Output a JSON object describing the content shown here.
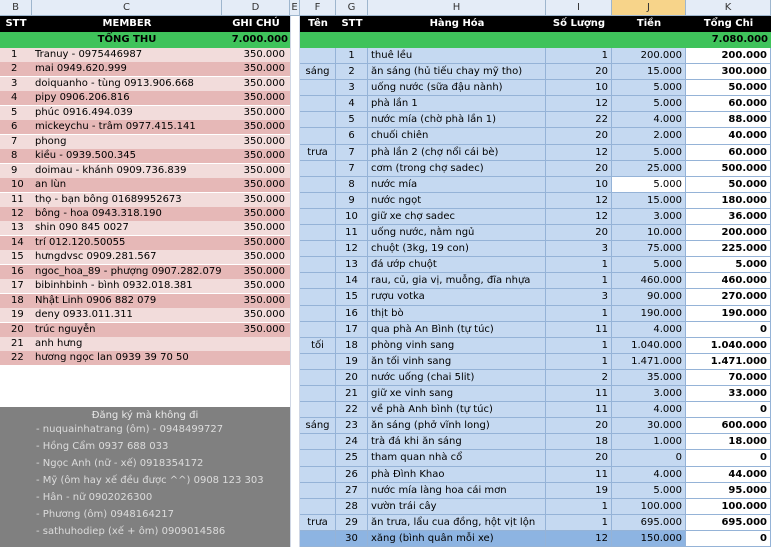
{
  "columns": [
    "B",
    "C",
    "D",
    "E",
    "F",
    "G",
    "H",
    "I",
    "J",
    "K"
  ],
  "left": {
    "headers": {
      "stt": "STT",
      "member": "MEMBER",
      "note": "GHI CHÚ"
    },
    "total_label": "TỔNG THU",
    "total_value": "7.000.000",
    "members": [
      {
        "stt": "1",
        "name": "Tranuy - 0975446987",
        "amount": "350.000"
      },
      {
        "stt": "2",
        "name": "mai 0949.620.999",
        "amount": "350.000"
      },
      {
        "stt": "3",
        "name": "doiquanho - tùng 0913.906.668",
        "amount": "350.000"
      },
      {
        "stt": "4",
        "name": "pipy 0906.206.816",
        "amount": "350.000"
      },
      {
        "stt": "5",
        "name": "phúc 0916.494.039",
        "amount": "350.000"
      },
      {
        "stt": "6",
        "name": "mickeychu - trâm 0977.415.141",
        "amount": "350.000"
      },
      {
        "stt": "7",
        "name": "phong",
        "amount": "350.000"
      },
      {
        "stt": "8",
        "name": "kiều - 0939.500.345",
        "amount": "350.000"
      },
      {
        "stt": "9",
        "name": "doimau - khánh 0909.736.839",
        "amount": "350.000"
      },
      {
        "stt": "10",
        "name": "an lùn",
        "amount": "350.000"
      },
      {
        "stt": "11",
        "name": "thọ - bạn bông 01689952673",
        "amount": "350.000"
      },
      {
        "stt": "12",
        "name": "bông - hoa 0943.318.190",
        "amount": "350.000"
      },
      {
        "stt": "13",
        "name": "shin 090 845 0027",
        "amount": "350.000"
      },
      {
        "stt": "14",
        "name": "trí 012.120.50055",
        "amount": "350.000"
      },
      {
        "stt": "15",
        "name": "hưngdvsc 0909.281.567",
        "amount": "350.000"
      },
      {
        "stt": "16",
        "name": "ngoc_hoa_89 - phượng 0907.282.079",
        "amount": "350.000"
      },
      {
        "stt": "17",
        "name": "bibinhbinh - bình 0932.018.381",
        "amount": "350.000"
      },
      {
        "stt": "18",
        "name": "Nhật Linh 0906 882 079",
        "amount": "350.000"
      },
      {
        "stt": "19",
        "name": "deny 0933.011.311",
        "amount": "350.000"
      },
      {
        "stt": "20",
        "name": "trúc nguyễn",
        "amount": "350.000"
      },
      {
        "stt": "21",
        "name": "anh hưng",
        "amount": ""
      },
      {
        "stt": "22",
        "name": "hương ngọc lan 0939 39 70 50",
        "amount": ""
      }
    ],
    "register_title": "Đăng ký mà không đi",
    "register_list": [
      "- nuquainhatrang (ôm) - 0948499727",
      "- Hồng Cẩm 0937 688 033",
      "- Ngọc Anh (nữ - xế) 0918354172",
      "- Mỹ (ôm hay xế đều được ^^) 0908 123 303",
      "- Hân - nữ 0902026300",
      "- Phương (ôm) 0948164217",
      "- sathuhodiep (xế + ôm) 0909014586"
    ]
  },
  "right": {
    "headers": {
      "ten": "Tên",
      "stt": "STT",
      "item": "Hàng Hóa",
      "qty": "Số Lượng",
      "price": "Tiền",
      "total": "Tổng Chi"
    },
    "grand_total": "7.080.000",
    "rows": [
      {
        "ten": "",
        "stt": "1",
        "item": "thuê lều",
        "qty": "1",
        "price": "200.000",
        "total": "200.000"
      },
      {
        "ten": "sáng",
        "stt": "2",
        "item": "ăn sáng (hủ tiếu chay mỹ tho)",
        "qty": "20",
        "price": "15.000",
        "total": "300.000"
      },
      {
        "ten": "",
        "stt": "3",
        "item": "uống nước (sữa đậu nành)",
        "qty": "10",
        "price": "5.000",
        "total": "50.000"
      },
      {
        "ten": "",
        "stt": "4",
        "item": "phà lần 1",
        "qty": "12",
        "price": "5.000",
        "total": "60.000"
      },
      {
        "ten": "",
        "stt": "5",
        "item": "nước mía (chờ phà lần 1)",
        "qty": "22",
        "price": "4.000",
        "total": "88.000"
      },
      {
        "ten": "",
        "stt": "6",
        "item": "chuối chiên",
        "qty": "20",
        "price": "2.000",
        "total": "40.000"
      },
      {
        "ten": "trưa",
        "stt": "7",
        "item": "phà lần 2 (chợ nổi cái bè)",
        "qty": "12",
        "price": "5.000",
        "total": "60.000"
      },
      {
        "ten": "",
        "stt": "7",
        "item": "cơm (trong chợ sadec)",
        "qty": "20",
        "price": "25.000",
        "total": "500.000"
      },
      {
        "ten": "",
        "stt": "8",
        "item": "nước mía",
        "qty": "10",
        "price": "5.000",
        "total": "50.000"
      },
      {
        "ten": "",
        "stt": "9",
        "item": "nước ngọt",
        "qty": "12",
        "price": "15.000",
        "total": "180.000"
      },
      {
        "ten": "",
        "stt": "10",
        "item": "giữ xe chợ sadec",
        "qty": "12",
        "price": "3.000",
        "total": "36.000"
      },
      {
        "ten": "",
        "stt": "11",
        "item": "uống nước, nằm ngủ",
        "qty": "20",
        "price": "10.000",
        "total": "200.000"
      },
      {
        "ten": "",
        "stt": "12",
        "item": "chuột (3kg, 19 con)",
        "qty": "3",
        "price": "75.000",
        "total": "225.000"
      },
      {
        "ten": "",
        "stt": "13",
        "item": "đá ướp chuột",
        "qty": "1",
        "price": "5.000",
        "total": "5.000"
      },
      {
        "ten": "",
        "stt": "14",
        "item": "rau, củ, gia vị, muỗng, đĩa nhựa",
        "qty": "1",
        "price": "460.000",
        "total": "460.000"
      },
      {
        "ten": "",
        "stt": "15",
        "item": "rượu votka",
        "qty": "3",
        "price": "90.000",
        "total": "270.000"
      },
      {
        "ten": "",
        "stt": "16",
        "item": "thịt bò",
        "qty": "1",
        "price": "190.000",
        "total": "190.000"
      },
      {
        "ten": "",
        "stt": "17",
        "item": "qua phà An Bình (tự túc)",
        "qty": "11",
        "price": "4.000",
        "total": "0"
      },
      {
        "ten": "tối",
        "stt": "18",
        "item": "phòng vinh sang",
        "qty": "1",
        "price": "1.040.000",
        "total": "1.040.000"
      },
      {
        "ten": "",
        "stt": "19",
        "item": "ăn tối vinh sang",
        "qty": "1",
        "price": "1.471.000",
        "total": "1.471.000"
      },
      {
        "ten": "",
        "stt": "20",
        "item": "nước uống (chai 5lit)",
        "qty": "2",
        "price": "35.000",
        "total": "70.000"
      },
      {
        "ten": "",
        "stt": "21",
        "item": "giữ xe vinh sang",
        "qty": "11",
        "price": "3.000",
        "total": "33.000"
      },
      {
        "ten": "",
        "stt": "22",
        "item": "về phà Anh bình (tự túc)",
        "qty": "11",
        "price": "4.000",
        "total": "0"
      },
      {
        "ten": "sáng",
        "stt": "23",
        "item": "ăn sáng (phở vĩnh long)",
        "qty": "20",
        "price": "30.000",
        "total": "600.000"
      },
      {
        "ten": "",
        "stt": "24",
        "item": "trà đá khi ăn sáng",
        "qty": "18",
        "price": "1.000",
        "total": "18.000"
      },
      {
        "ten": "",
        "stt": "25",
        "item": "tham quan nhà cổ",
        "qty": "20",
        "price": "0",
        "total": "0"
      },
      {
        "ten": "",
        "stt": "26",
        "item": "phà Đình Khao",
        "qty": "11",
        "price": "4.000",
        "total": "44.000"
      },
      {
        "ten": "",
        "stt": "27",
        "item": "nước mía làng hoa cái mơn",
        "qty": "19",
        "price": "5.000",
        "total": "95.000"
      },
      {
        "ten": "",
        "stt": "28",
        "item": "vườn trái cây",
        "qty": "1",
        "price": "100.000",
        "total": "100.000"
      },
      {
        "ten": "trưa",
        "stt": "29",
        "item": "ăn trưa, lẩu cua đồng, hột vịt lộn",
        "qty": "1",
        "price": "695.000",
        "total": "695.000"
      },
      {
        "ten": "",
        "stt": "30",
        "item": "xăng (bình quân mỗi xe)",
        "qty": "12",
        "price": "150.000",
        "total": "0"
      }
    ]
  }
}
